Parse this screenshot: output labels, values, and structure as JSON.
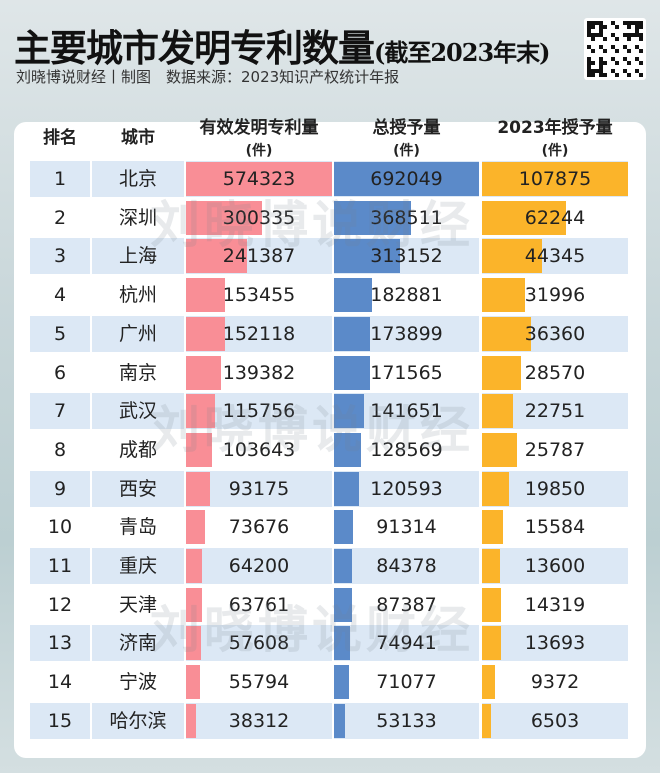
{
  "title": "主要城市发明专利数量",
  "title_suffix": "(截至2023年末)",
  "subtitle": "刘晓博说财经丨制图　数据来源：2023知识产权统计年报",
  "watermark": "刘晓博说财经",
  "headers": {
    "rank": "排名",
    "city": "城市",
    "c1": "有效发明专利量",
    "c2": "总授予量",
    "c3": "2023年授予量",
    "unit": "(件)"
  },
  "colors": {
    "c1": "#f98e96",
    "c2": "#5b8ac9",
    "c3": "#fbb42a",
    "row_alt": "#dce8f5"
  },
  "chart_data": {
    "type": "table",
    "title": "主要城市发明专利数量(截至2023年末)",
    "columns": [
      "排名",
      "城市",
      "有效发明专利量(件)",
      "总授予量(件)",
      "2023年授予量(件)"
    ],
    "rows": [
      [
        1,
        "北京",
        574323,
        692049,
        107875
      ],
      [
        2,
        "深圳",
        300335,
        368511,
        62244
      ],
      [
        3,
        "上海",
        241387,
        313152,
        44345
      ],
      [
        4,
        "杭州",
        153455,
        182881,
        31996
      ],
      [
        5,
        "广州",
        152118,
        173899,
        36360
      ],
      [
        6,
        "南京",
        139382,
        171565,
        28570
      ],
      [
        7,
        "武汉",
        115756,
        141651,
        22751
      ],
      [
        8,
        "成都",
        103643,
        128569,
        25787
      ],
      [
        9,
        "西安",
        93175,
        120593,
        19850
      ],
      [
        10,
        "青岛",
        73676,
        91314,
        15584
      ],
      [
        11,
        "重庆",
        64200,
        84378,
        13600
      ],
      [
        12,
        "天津",
        63761,
        87387,
        14319
      ],
      [
        13,
        "济南",
        57608,
        74941,
        13693
      ],
      [
        14,
        "宁波",
        55794,
        71077,
        9372
      ],
      [
        15,
        "哈尔滨",
        38312,
        53133,
        6503
      ]
    ]
  }
}
